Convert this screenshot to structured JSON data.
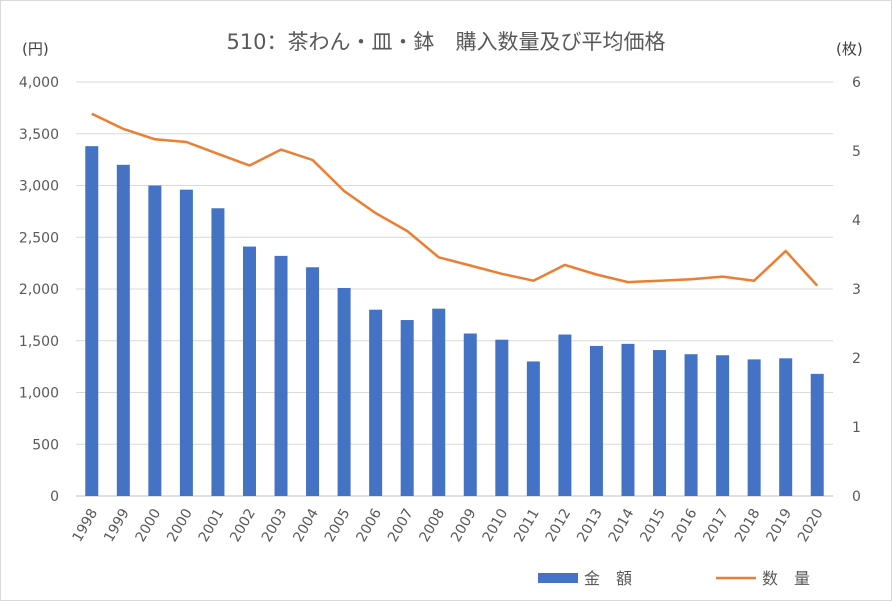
{
  "chart_data": {
    "type": "bar",
    "title": "510：茶わん・皿・鉢　購入数量及び平均価格",
    "left_unit": "(円)",
    "right_unit": "(枚)",
    "categories": [
      "1998",
      "1999",
      "2000",
      "2000",
      "2001",
      "2002",
      "2003",
      "2004",
      "2005",
      "2006",
      "2007",
      "2008",
      "2009",
      "2010",
      "2011",
      "2012",
      "2013",
      "2014",
      "2015",
      "2016",
      "2017",
      "2018",
      "2019",
      "2020"
    ],
    "series": [
      {
        "name": "金　額",
        "type": "bar",
        "axis": "left",
        "color": "#4472C4",
        "values": [
          3380,
          3200,
          3000,
          2960,
          2780,
          2410,
          2320,
          2210,
          2010,
          1800,
          1700,
          1810,
          1570,
          1510,
          1300,
          1560,
          1450,
          1470,
          1410,
          1370,
          1360,
          1320,
          1330,
          1180
        ]
      },
      {
        "name": "数　量",
        "type": "line",
        "axis": "right",
        "color": "#ED7D31",
        "values": [
          5.54,
          5.32,
          5.17,
          5.13,
          4.96,
          4.79,
          5.02,
          4.87,
          4.42,
          4.1,
          3.84,
          3.46,
          3.34,
          3.22,
          3.12,
          3.35,
          3.21,
          3.1,
          3.12,
          3.14,
          3.18,
          3.12,
          3.55,
          3.05
        ]
      }
    ],
    "left_ticks": [
      "4,000",
      "3,500",
      "3,000",
      "2,500",
      "2,000",
      "1,500",
      "1,000",
      "500",
      "0"
    ],
    "right_ticks": [
      "6",
      "5",
      "4",
      "3",
      "2",
      "1",
      "0"
    ],
    "ylim_left": [
      0,
      4000
    ],
    "ylim_right": [
      0,
      6
    ],
    "grid": true,
    "legend_position": "bottom-right"
  }
}
